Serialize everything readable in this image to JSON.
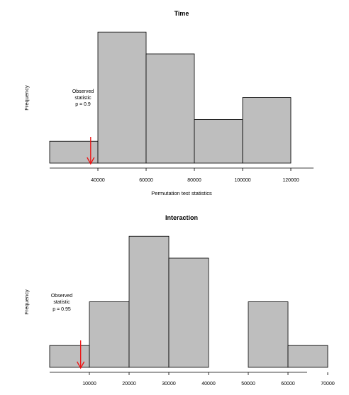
{
  "chart_data": [
    {
      "type": "bar",
      "title": "Time",
      "xlabel": "Permutation test statistics",
      "ylabel": "Frequency",
      "bins": [
        {
          "start": 20000,
          "end": 40000,
          "count": 1
        },
        {
          "start": 40000,
          "end": 60000,
          "count": 6
        },
        {
          "start": 60000,
          "end": 80000,
          "count": 5
        },
        {
          "start": 80000,
          "end": 100000,
          "count": 2
        },
        {
          "start": 100000,
          "end": 120000,
          "count": 3
        }
      ],
      "xticks": [
        "40000",
        "60000",
        "80000",
        "100000",
        "120000"
      ],
      "observed": 37000,
      "annotation": [
        "Observed",
        "statistic",
        "p = 0.9"
      ],
      "bar_color": "#bebebe",
      "arrow_color": "#ee1111"
    },
    {
      "type": "bar",
      "title": "Interaction",
      "xlabel": "",
      "ylabel": "Frequency",
      "bins": [
        {
          "start": 0,
          "end": 10000,
          "count": 1
        },
        {
          "start": 10000,
          "end": 20000,
          "count": 3
        },
        {
          "start": 20000,
          "end": 30000,
          "count": 6
        },
        {
          "start": 30000,
          "end": 40000,
          "count": 5
        },
        {
          "start": 40000,
          "end": 50000,
          "count": 0
        },
        {
          "start": 50000,
          "end": 60000,
          "count": 3
        },
        {
          "start": 60000,
          "end": 70000,
          "count": 1
        }
      ],
      "xticks": [
        "10000",
        "20000",
        "30000",
        "40000",
        "50000",
        "60000",
        "70000"
      ],
      "observed": 7800,
      "annotation": [
        "Observed",
        "statistic",
        "p = 0.95"
      ],
      "bar_color": "#bebebe",
      "arrow_color": "#ee1111"
    }
  ]
}
